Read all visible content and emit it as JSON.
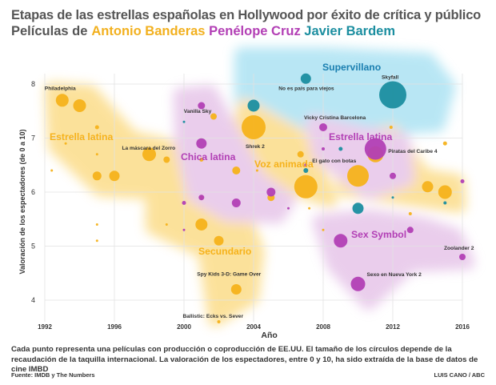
{
  "header": {
    "title": "Etapas de las estrellas españolas en Hollywood por éxito de crítica y público",
    "subtitle_prefix": "Películas de",
    "actor1": "Antonio Banderas",
    "actor2": "Penélope Cruz",
    "actor3": "Javier Bardem"
  },
  "colors": {
    "banderas": "#f6b21b",
    "cruz": "#b23fb5",
    "bardem": "#1b8ea0",
    "bardem_label": "#1a7fb0",
    "zone_banderas": "#f9c94a",
    "zone_cruz": "#d9a6dd",
    "zone_bardem": "#7fd3ec"
  },
  "chart_data": {
    "type": "scatter",
    "title": "Etapas de las estrellas españolas en Hollywood por éxito de crítica y público",
    "xlabel": "Año",
    "ylabel": "Valoración de los espectadores (de 0 a 10)",
    "xlim": [
      1992,
      2016
    ],
    "ylim": [
      3.6,
      8.1
    ],
    "xticks": [
      "1992",
      "1996",
      "2000",
      "2004",
      "2008",
      "2012",
      "2016"
    ],
    "yticks": [
      "4",
      "5",
      "6",
      "7",
      "8"
    ],
    "grid": true,
    "zones": [
      {
        "label": "Estrella latina",
        "actor": "banderas"
      },
      {
        "label": "Voz animada",
        "actor": "banderas"
      },
      {
        "label": "Secundario",
        "actor": "banderas"
      },
      {
        "label": "Chica latina",
        "actor": "cruz"
      },
      {
        "label": "Estrella latina",
        "actor": "cruz"
      },
      {
        "label": "Sex Symbol",
        "actor": "cruz"
      },
      {
        "label": "Supervillano",
        "actor": "bardem"
      }
    ],
    "series": [
      {
        "name": "Antonio Banderas",
        "points": [
          {
            "x": 1993,
            "y": 7.7,
            "s": 8,
            "label": "Philadelphia"
          },
          {
            "x": 1994,
            "y": 7.6,
            "s": 8
          },
          {
            "x": 1995,
            "y": 7.2,
            "s": 2.5
          },
          {
            "x": 1993.2,
            "y": 6.9,
            "s": 1.5
          },
          {
            "x": 1995,
            "y": 6.7,
            "s": 1.5
          },
          {
            "x": 1995,
            "y": 6.3,
            "s": 5.5
          },
          {
            "x": 1996,
            "y": 6.3,
            "s": 6.5
          },
          {
            "x": 1998,
            "y": 6.7,
            "s": 8.5,
            "label": "La máscara del Zorro"
          },
          {
            "x": 1999,
            "y": 6.6,
            "s": 4
          },
          {
            "x": 1992.4,
            "y": 6.4,
            "s": 1.5
          },
          {
            "x": 2001,
            "y": 6.6,
            "s": 2.5
          },
          {
            "x": 2001.7,
            "y": 7.4,
            "s": 4
          },
          {
            "x": 2003,
            "y": 6.4,
            "s": 5
          },
          {
            "x": 2001,
            "y": 5.9,
            "s": 2.5
          },
          {
            "x": 2004,
            "y": 7.2,
            "s": 15,
            "label": "Shrek 2"
          },
          {
            "x": 2004.2,
            "y": 6.4,
            "s": 1.5
          },
          {
            "x": 2005,
            "y": 5.9,
            "s": 4.5
          },
          {
            "x": 2006.7,
            "y": 6.7,
            "s": 4
          },
          {
            "x": 2007,
            "y": 6.1,
            "s": 14.5
          },
          {
            "x": 2007.2,
            "y": 5.7,
            "s": 1.5
          },
          {
            "x": 2010,
            "y": 6.3,
            "s": 13.5
          },
          {
            "x": 2011,
            "y": 6.7,
            "s": 10,
            "label": "El gato con botas"
          },
          {
            "x": 2011.9,
            "y": 7.2,
            "s": 2
          },
          {
            "x": 2013,
            "y": 5.6,
            "s": 2
          },
          {
            "x": 2014,
            "y": 6.1,
            "s": 7
          },
          {
            "x": 2015,
            "y": 6.0,
            "s": 8.5
          },
          {
            "x": 2015,
            "y": 6.9,
            "s": 2.5
          },
          {
            "x": 1995,
            "y": 5.4,
            "s": 1.5
          },
          {
            "x": 1995,
            "y": 5.1,
            "s": 1.5
          },
          {
            "x": 1999,
            "y": 5.4,
            "s": 1.5
          },
          {
            "x": 2001,
            "y": 5.4,
            "s": 7.5
          },
          {
            "x": 2002,
            "y": 5.1,
            "s": 6
          },
          {
            "x": 2003,
            "y": 4.2,
            "s": 6.5,
            "label": "Spy Kids 3-D: Game Over"
          },
          {
            "x": 2002,
            "y": 3.6,
            "s": 2,
            "label": "Ballistic: Ecks vs. Sever"
          },
          {
            "x": 2008,
            "y": 5.3,
            "s": 1.5
          }
        ]
      },
      {
        "name": "Penélope Cruz",
        "points": [
          {
            "x": 2001,
            "y": 7.6,
            "s": 4.5,
            "label": "Vanilla Sky"
          },
          {
            "x": 2001,
            "y": 6.9,
            "s": 6.5
          },
          {
            "x": 2001,
            "y": 5.9,
            "s": 3.5
          },
          {
            "x": 2000,
            "y": 5.8,
            "s": 2.5
          },
          {
            "x": 2000,
            "y": 5.3,
            "s": 1.5
          },
          {
            "x": 2003,
            "y": 5.8,
            "s": 5.5
          },
          {
            "x": 2005,
            "y": 6.0,
            "s": 5.5
          },
          {
            "x": 2006,
            "y": 5.7,
            "s": 1.5
          },
          {
            "x": 2007,
            "y": 6.5,
            "s": 2
          },
          {
            "x": 2008,
            "y": 7.2,
            "s": 5,
            "label": "Vicky Cristina Barcelona"
          },
          {
            "x": 2008,
            "y": 6.8,
            "s": 2
          },
          {
            "x": 2009,
            "y": 5.1,
            "s": 8.5
          },
          {
            "x": 2010,
            "y": 4.3,
            "s": 9,
            "label": "Sexo en Nueva York 2"
          },
          {
            "x": 2011,
            "y": 6.8,
            "s": 13.5,
            "label": "Piratas del Caribe 4"
          },
          {
            "x": 2012,
            "y": 6.3,
            "s": 4
          },
          {
            "x": 2013,
            "y": 5.3,
            "s": 4
          },
          {
            "x": 2016,
            "y": 4.8,
            "s": 4,
            "label": "Zoolander 2"
          },
          {
            "x": 2016,
            "y": 6.2,
            "s": 2.5
          }
        ]
      },
      {
        "name": "Javier Bardem",
        "points": [
          {
            "x": 2000,
            "y": 7.3,
            "s": 1.5
          },
          {
            "x": 2004,
            "y": 7.6,
            "s": 7.5
          },
          {
            "x": 2007,
            "y": 8.1,
            "s": 6.5,
            "label": "No es país para viejos"
          },
          {
            "x": 2007,
            "y": 6.4,
            "s": 3
          },
          {
            "x": 2009,
            "y": 6.8,
            "s": 2.5
          },
          {
            "x": 2010,
            "y": 5.7,
            "s": 7
          },
          {
            "x": 2012,
            "y": 7.8,
            "s": 17,
            "label": "Skyfall"
          },
          {
            "x": 2012,
            "y": 5.9,
            "s": 1.5
          },
          {
            "x": 2015,
            "y": 5.8,
            "s": 2
          }
        ]
      }
    ]
  },
  "footnote": "Cada punto representa una películas con producción o coproducción de EE.UU. El tamaño de los círculos depende de la recaudación de la taquilla internacional. La valoración de los espectadores, entre 0 y 10, ha sido extraída de la base de datos de cine IMBD",
  "source": "Fuente: IMDB y The Numbers",
  "credit": "LUIS CANO / ABC"
}
